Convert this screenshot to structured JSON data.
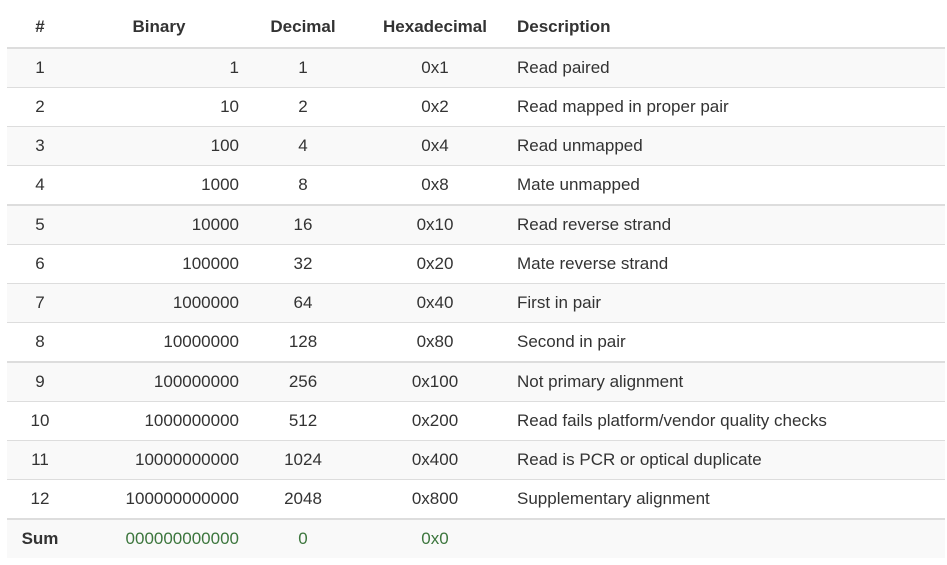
{
  "headers": {
    "num": "#",
    "binary": "Binary",
    "decimal": "Decimal",
    "hex": "Hexadecimal",
    "description": "Description"
  },
  "rows": [
    {
      "num": "1",
      "binary": "1",
      "decimal": "1",
      "hex": "0x1",
      "description": "Read paired"
    },
    {
      "num": "2",
      "binary": "10",
      "decimal": "2",
      "hex": "0x2",
      "description": "Read mapped in proper pair"
    },
    {
      "num": "3",
      "binary": "100",
      "decimal": "4",
      "hex": "0x4",
      "description": "Read unmapped"
    },
    {
      "num": "4",
      "binary": "1000",
      "decimal": "8",
      "hex": "0x8",
      "description": "Mate unmapped"
    },
    {
      "num": "5",
      "binary": "10000",
      "decimal": "16",
      "hex": "0x10",
      "description": "Read reverse strand"
    },
    {
      "num": "6",
      "binary": "100000",
      "decimal": "32",
      "hex": "0x20",
      "description": "Mate reverse strand"
    },
    {
      "num": "7",
      "binary": "1000000",
      "decimal": "64",
      "hex": "0x40",
      "description": "First in pair"
    },
    {
      "num": "8",
      "binary": "10000000",
      "decimal": "128",
      "hex": "0x80",
      "description": "Second in pair"
    },
    {
      "num": "9",
      "binary": "100000000",
      "decimal": "256",
      "hex": "0x100",
      "description": "Not primary alignment"
    },
    {
      "num": "10",
      "binary": "1000000000",
      "decimal": "512",
      "hex": "0x200",
      "description": "Read fails platform/vendor quality checks"
    },
    {
      "num": "11",
      "binary": "10000000000",
      "decimal": "1024",
      "hex": "0x400",
      "description": "Read is PCR or optical duplicate"
    },
    {
      "num": "12",
      "binary": "100000000000",
      "decimal": "2048",
      "hex": "0x800",
      "description": "Supplementary alignment"
    }
  ],
  "sum": {
    "label": "Sum",
    "binary": "000000000000",
    "decimal": "0",
    "hex": "0x0"
  },
  "colors": {
    "sum_value": "#3c763d",
    "stripe": "#f9f9f9",
    "border": "#dddddd"
  }
}
